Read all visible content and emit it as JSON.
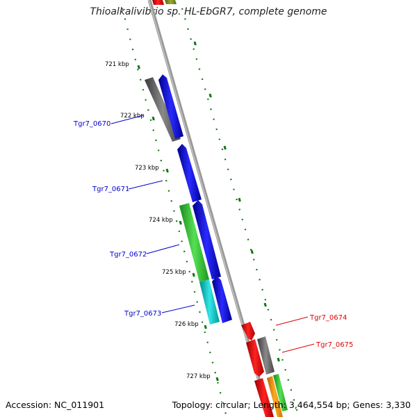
{
  "title": "Thioalkalivibrio sp. HL-EbGR7, complete genome",
  "footer": {
    "accession": "Accession: NC_011901",
    "summary": "Topology: circular; Length: 3,464,554 bp; Genes: 3,330"
  },
  "scale_labels": [
    "721 kbp",
    "722 kbp",
    "723 kbp",
    "724 kbp",
    "725 kbp",
    "726 kbp",
    "727 kbp"
  ],
  "gene_labels": [
    {
      "text": "Tgr7_0670",
      "color": "#0000cc"
    },
    {
      "text": "Tgr7_0671",
      "color": "#0000cc"
    },
    {
      "text": "Tgr7_0672",
      "color": "#0000cc"
    },
    {
      "text": "Tgr7_0673",
      "color": "#0000cc"
    },
    {
      "text": "Tgr7_0674",
      "color": "#dd0000"
    },
    {
      "text": "Tgr7_0675",
      "color": "#dd0000"
    }
  ],
  "colors": {
    "blue_gene": "#0000ee",
    "red_gene": "#ee0000",
    "green_gene": "#33cc33",
    "cyan_gene": "#00cccc",
    "gray_gene": "#666666",
    "orange_gene": "#ff9900",
    "olive_gene": "#889922",
    "backbone": "#888888",
    "tick": "#117711"
  }
}
